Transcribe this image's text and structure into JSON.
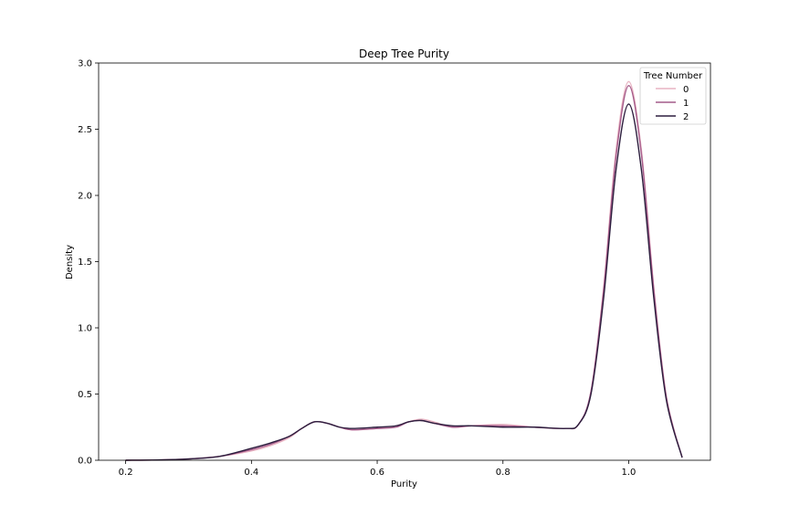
{
  "chart_data": {
    "type": "line",
    "title": "Deep Tree Purity",
    "xlabel": "Purity",
    "ylabel": "Density",
    "xlim": [
      0.157,
      1.13
    ],
    "ylim": [
      0.0,
      3.0
    ],
    "xticks": [
      0.2,
      0.4,
      0.6,
      0.8,
      1.0
    ],
    "xtick_labels": [
      "0.2",
      "0.4",
      "0.6",
      "0.8",
      "1.0"
    ],
    "yticks": [
      0.0,
      0.5,
      1.0,
      1.5,
      2.0,
      2.5,
      3.0
    ],
    "ytick_labels": [
      "0.0",
      "0.5",
      "1.0",
      "1.5",
      "2.0",
      "2.5",
      "3.0"
    ],
    "grid": false,
    "legend": {
      "title": "Tree Number",
      "placement": "top-right"
    },
    "series": [
      {
        "name": "0",
        "color": "#e8b4c2",
        "points": [
          [
            0.2,
            0.0
          ],
          [
            0.25,
            0.002
          ],
          [
            0.3,
            0.01
          ],
          [
            0.35,
            0.03
          ],
          [
            0.4,
            0.07
          ],
          [
            0.43,
            0.11
          ],
          [
            0.46,
            0.17
          ],
          [
            0.48,
            0.24
          ],
          [
            0.5,
            0.29
          ],
          [
            0.52,
            0.28
          ],
          [
            0.54,
            0.25
          ],
          [
            0.56,
            0.23
          ],
          [
            0.6,
            0.24
          ],
          [
            0.63,
            0.26
          ],
          [
            0.65,
            0.29
          ],
          [
            0.67,
            0.31
          ],
          [
            0.69,
            0.29
          ],
          [
            0.72,
            0.25
          ],
          [
            0.75,
            0.26
          ],
          [
            0.8,
            0.27
          ],
          [
            0.85,
            0.25
          ],
          [
            0.9,
            0.24
          ],
          [
            0.92,
            0.27
          ],
          [
            0.94,
            0.52
          ],
          [
            0.96,
            1.3
          ],
          [
            0.98,
            2.35
          ],
          [
            1.0,
            2.86
          ],
          [
            1.02,
            2.35
          ],
          [
            1.04,
            1.3
          ],
          [
            1.06,
            0.48
          ],
          [
            1.085,
            0.02
          ]
        ]
      },
      {
        "name": "1",
        "color": "#a45b8a",
        "points": [
          [
            0.2,
            0.0
          ],
          [
            0.25,
            0.002
          ],
          [
            0.3,
            0.01
          ],
          [
            0.35,
            0.03
          ],
          [
            0.4,
            0.08
          ],
          [
            0.43,
            0.12
          ],
          [
            0.46,
            0.18
          ],
          [
            0.48,
            0.24
          ],
          [
            0.5,
            0.29
          ],
          [
            0.52,
            0.28
          ],
          [
            0.54,
            0.25
          ],
          [
            0.56,
            0.23
          ],
          [
            0.6,
            0.24
          ],
          [
            0.63,
            0.25
          ],
          [
            0.65,
            0.29
          ],
          [
            0.67,
            0.3
          ],
          [
            0.69,
            0.28
          ],
          [
            0.72,
            0.25
          ],
          [
            0.75,
            0.26
          ],
          [
            0.8,
            0.26
          ],
          [
            0.85,
            0.25
          ],
          [
            0.9,
            0.24
          ],
          [
            0.92,
            0.27
          ],
          [
            0.94,
            0.52
          ],
          [
            0.96,
            1.28
          ],
          [
            0.98,
            2.3
          ],
          [
            1.0,
            2.83
          ],
          [
            1.02,
            2.32
          ],
          [
            1.04,
            1.28
          ],
          [
            1.06,
            0.47
          ],
          [
            1.085,
            0.02
          ]
        ]
      },
      {
        "name": "2",
        "color": "#2d1e3e",
        "points": [
          [
            0.2,
            0.0
          ],
          [
            0.25,
            0.002
          ],
          [
            0.3,
            0.01
          ],
          [
            0.35,
            0.03
          ],
          [
            0.4,
            0.09
          ],
          [
            0.43,
            0.13
          ],
          [
            0.46,
            0.18
          ],
          [
            0.48,
            0.24
          ],
          [
            0.5,
            0.29
          ],
          [
            0.52,
            0.28
          ],
          [
            0.54,
            0.25
          ],
          [
            0.56,
            0.24
          ],
          [
            0.6,
            0.25
          ],
          [
            0.63,
            0.26
          ],
          [
            0.65,
            0.29
          ],
          [
            0.67,
            0.3
          ],
          [
            0.69,
            0.28
          ],
          [
            0.72,
            0.26
          ],
          [
            0.75,
            0.26
          ],
          [
            0.8,
            0.25
          ],
          [
            0.85,
            0.25
          ],
          [
            0.9,
            0.24
          ],
          [
            0.92,
            0.27
          ],
          [
            0.94,
            0.5
          ],
          [
            0.96,
            1.22
          ],
          [
            0.98,
            2.2
          ],
          [
            1.0,
            2.69
          ],
          [
            1.02,
            2.2
          ],
          [
            1.04,
            1.22
          ],
          [
            1.06,
            0.45
          ],
          [
            1.085,
            0.02
          ]
        ]
      }
    ]
  }
}
